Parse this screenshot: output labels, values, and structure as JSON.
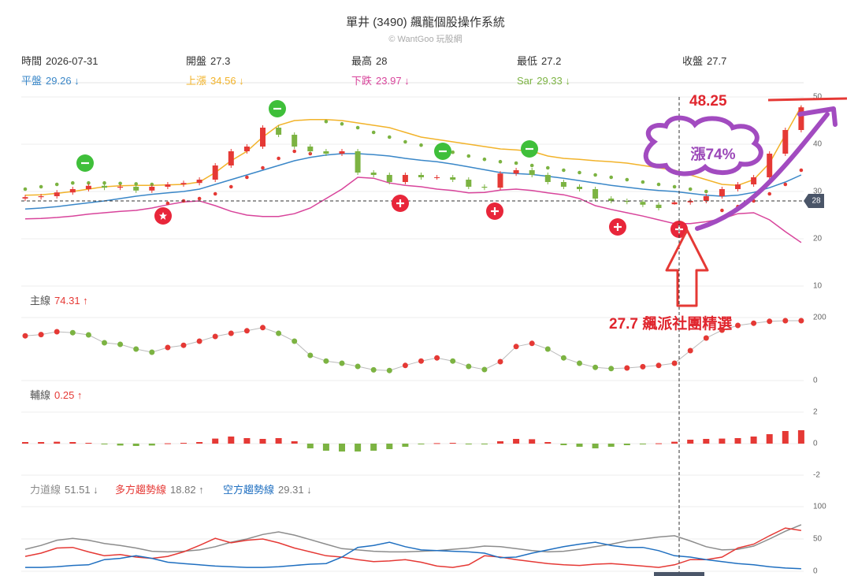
{
  "header": {
    "title": "單井 (3490) 飆龍個股操作系統",
    "subtitle": "© WantGoo 玩股網",
    "info": [
      {
        "label": "時間",
        "value": "2026-07-31"
      },
      {
        "label": "開盤",
        "value": 27.3
      },
      {
        "label": "最高",
        "value": 28
      },
      {
        "label": "最低",
        "value": 27.2
      },
      {
        "label": "收盤",
        "value": 27.7
      }
    ]
  },
  "chart_data": [
    {
      "type": "candlestick",
      "up_color": "#e53935",
      "down_color": "#7cb342",
      "grid": true,
      "ylim": [
        10,
        53
      ],
      "yticks": [
        10,
        20,
        30,
        40,
        50
      ],
      "price_marker": 28,
      "open": [
        28.5,
        28.8,
        29.0,
        29.8,
        30.5,
        31.2,
        30.8,
        31.0,
        30.2,
        31.0,
        31.5,
        31.8,
        32.5,
        35.5,
        38.5,
        39.5,
        43.5,
        42.0,
        39.5,
        38.5,
        38.0,
        38.5,
        34.0,
        33.5,
        32.0,
        33.5,
        33.0,
        33.0,
        32.5,
        31.0,
        30.8,
        33.8,
        34.5,
        33.5,
        32.0,
        31.0,
        30.5,
        28.5,
        28.0,
        27.8,
        27.2,
        27.3,
        27.7,
        28.0,
        29.0,
        30.5,
        31.5,
        33.0,
        38.0,
        43.0
      ],
      "high": [
        29.3,
        29.5,
        30.3,
        31.0,
        31.7,
        31.7,
        31.5,
        31.5,
        31.5,
        32.0,
        32.3,
        33.0,
        36.0,
        39.0,
        40.0,
        44.0,
        44.0,
        42.5,
        40.0,
        39.0,
        39.0,
        39.0,
        34.5,
        34.0,
        34.0,
        34.0,
        33.5,
        33.5,
        33.0,
        31.5,
        34.3,
        35.0,
        35.0,
        34.0,
        32.5,
        31.5,
        31.0,
        29.0,
        28.5,
        28.3,
        27.7,
        28,
        28.5,
        29.5,
        31.0,
        32.0,
        33.5,
        38.5,
        43.5,
        48.25
      ],
      "low": [
        28.0,
        28.3,
        28.5,
        29.3,
        30.0,
        30.3,
        30.3,
        29.7,
        29.7,
        30.5,
        31.0,
        31.3,
        32.0,
        35.0,
        38.0,
        39.0,
        41.5,
        39.0,
        38.0,
        37.5,
        37.5,
        33.5,
        33.0,
        31.5,
        31.5,
        32.5,
        32.5,
        32.0,
        30.5,
        30.3,
        30.3,
        33.3,
        33.0,
        31.5,
        30.5,
        30.0,
        28.0,
        27.5,
        27.3,
        26.7,
        26.0,
        27.2,
        27.2,
        27.5,
        28.5,
        30.0,
        31.0,
        32.5,
        37.5,
        42.5
      ],
      "close": [
        28.8,
        29.0,
        29.8,
        30.5,
        31.2,
        30.8,
        31.0,
        30.2,
        31.0,
        31.5,
        31.8,
        32.5,
        35.5,
        38.5,
        39.5,
        43.5,
        42.0,
        39.5,
        38.5,
        38.0,
        38.5,
        34.0,
        33.5,
        32.0,
        33.5,
        33.0,
        33.0,
        32.5,
        31.0,
        30.8,
        33.8,
        34.5,
        33.5,
        32.0,
        31.0,
        30.5,
        28.5,
        28.0,
        27.8,
        27.2,
        26.5,
        27.7,
        28.0,
        29.0,
        30.5,
        31.5,
        33.0,
        38.0,
        43.0,
        47.8
      ],
      "series": [
        {
          "name": "平盤",
          "readout": "29.26 ↓",
          "color": "#3a87c8",
          "values": [
            26.3,
            26.5,
            26.8,
            27.2,
            27.6,
            28.0,
            28.5,
            29.0,
            29.4,
            29.7,
            30.0,
            30.5,
            31.5,
            32.5,
            33.5,
            34.5,
            35.5,
            36.5,
            37.2,
            37.7,
            38.0,
            38.0,
            37.8,
            37.5,
            37.0,
            36.6,
            36.3,
            35.8,
            35.2,
            34.6,
            34.0,
            33.8,
            33.6,
            33.2,
            32.8,
            32.3,
            31.8,
            31.3,
            30.9,
            30.5,
            30.2,
            30.0,
            29.6,
            29.2,
            29.0,
            29.2,
            29.8,
            30.8,
            32.0,
            33.5
          ]
        },
        {
          "name": "上漲",
          "readout": "34.56 ↓",
          "color": "#f2b32a",
          "values": [
            29.2,
            29.3,
            29.6,
            30.0,
            30.5,
            31.0,
            31.2,
            31.3,
            31.3,
            31.4,
            31.5,
            32.0,
            34.0,
            36.5,
            38.5,
            41.5,
            44.0,
            45.0,
            45.2,
            45.2,
            45.0,
            44.5,
            44.0,
            43.5,
            42.5,
            41.5,
            41.0,
            40.5,
            40.0,
            39.5,
            39.0,
            38.8,
            38.5,
            37.5,
            37.0,
            36.8,
            36.5,
            36.3,
            36.0,
            35.5,
            35.0,
            34.5,
            33.5,
            32.5,
            31.5,
            31.3,
            32.5,
            36.0,
            42.0,
            48.0
          ]
        },
        {
          "name": "下跌",
          "readout": "23.97 ↓",
          "color": "#d8449b",
          "values": [
            24.2,
            24.3,
            24.5,
            24.8,
            25.2,
            25.5,
            25.8,
            26.0,
            26.5,
            27.2,
            27.8,
            28.0,
            27.0,
            25.8,
            25.0,
            24.7,
            24.7,
            25.3,
            26.5,
            28.5,
            30.5,
            33.0,
            32.8,
            31.8,
            31.3,
            31.0,
            30.5,
            30.2,
            29.7,
            29.8,
            30.3,
            30.5,
            30.2,
            29.7,
            29.3,
            28.5,
            27.0,
            26.2,
            25.5,
            24.8,
            24.0,
            23.2,
            23.2,
            23.6,
            24.2,
            25.3,
            25.5,
            24.0,
            21.5,
            19.2
          ]
        },
        {
          "name": "Sar",
          "readout": "29.33 ↓",
          "color": "#7cb342",
          "style": "dots",
          "values": [
            30.5,
            31.0,
            31.5,
            31.8,
            31.8,
            31.8,
            31.7,
            31.6,
            31.5,
            27.5,
            28.0,
            28.5,
            29.5,
            31.0,
            33.0,
            35.0,
            37.0,
            38.5,
            38.0,
            44.8,
            44.3,
            43.5,
            42.5,
            41.5,
            40.5,
            39.8,
            39.0,
            38.3,
            37.5,
            36.8,
            36.3,
            36.0,
            35.5,
            35.0,
            34.5,
            34.0,
            33.5,
            33.0,
            32.5,
            32.0,
            31.5,
            31.0,
            30.5,
            30.0,
            26.0,
            26.8,
            28.0,
            29.5,
            31.5,
            34.5
          ]
        }
      ],
      "annotations": [
        "48.25",
        "漲74%",
        "27.7 飆派社團精選"
      ]
    },
    {
      "type": "dot_line",
      "up_color": "#e53935",
      "down_color": "#7cb342",
      "grid": true,
      "ylim": [
        0,
        200
      ],
      "yticks": [
        0,
        200
      ],
      "series": [
        {
          "name": "主線",
          "readout": "74.31 ↑",
          "color": "#e53935",
          "values": [
            142,
            146,
            155,
            152,
            145,
            120,
            115,
            100,
            90,
            105,
            112,
            125,
            140,
            150,
            158,
            168,
            150,
            125,
            80,
            62,
            55,
            45,
            34,
            32,
            48,
            62,
            72,
            62,
            45,
            35,
            60,
            108,
            118,
            100,
            72,
            55,
            42,
            38,
            40,
            44,
            48,
            55,
            95,
            135,
            160,
            175,
            182,
            188,
            190,
            190
          ]
        }
      ]
    },
    {
      "type": "bar",
      "up_color": "#e53935",
      "down_color": "#7cb342",
      "grid": true,
      "ylim": [
        -2,
        2
      ],
      "yticks": [
        -2,
        0,
        2
      ],
      "series": [
        {
          "name": "輔線",
          "readout": "0.25 ↑",
          "color": "#e53935",
          "values": [
            0.1,
            0.1,
            0.12,
            0.1,
            0.05,
            -0.05,
            -0.12,
            -0.15,
            -0.12,
            0.02,
            0.05,
            0.1,
            0.32,
            0.45,
            0.35,
            0.3,
            0.35,
            0.15,
            -0.3,
            -0.45,
            -0.5,
            -0.5,
            -0.45,
            -0.35,
            -0.2,
            -0.05,
            0.03,
            0.05,
            -0.05,
            -0.03,
            0.15,
            0.3,
            0.28,
            0.1,
            -0.1,
            -0.2,
            -0.3,
            -0.2,
            -0.1,
            -0.05,
            0.02,
            0.12,
            0.25,
            0.3,
            0.32,
            0.35,
            0.45,
            0.6,
            0.8,
            0.85
          ]
        }
      ]
    },
    {
      "type": "line",
      "grid": true,
      "ylim": [
        0,
        100
      ],
      "yticks": [
        0,
        50,
        100
      ],
      "series": [
        {
          "name": "力道線",
          "readout": "51.51 ↓",
          "color": "#8c8c8c",
          "values": [
            34,
            40,
            48,
            51,
            48,
            43,
            40,
            36,
            31,
            30,
            31,
            33,
            38,
            45,
            50,
            57,
            61,
            56,
            49,
            42,
            35,
            33,
            31,
            30,
            30,
            31,
            32,
            34,
            36,
            39,
            38,
            35,
            32,
            30,
            31,
            34,
            38,
            42,
            47,
            50,
            53,
            55,
            47,
            38,
            33,
            34,
            39,
            50,
            62,
            72
          ]
        },
        {
          "name": "多方趨勢線",
          "readout": "18.82 ↑",
          "color": "#e53935",
          "values": [
            23,
            28,
            36,
            37,
            30,
            24,
            26,
            22,
            20,
            23,
            30,
            40,
            51,
            44,
            48,
            50,
            44,
            36,
            30,
            24,
            22,
            18,
            15,
            16,
            18,
            14,
            8,
            6,
            10,
            24,
            22,
            18,
            15,
            12,
            10,
            9,
            11,
            12,
            10,
            8,
            6,
            10,
            18,
            18,
            22,
            36,
            42,
            55,
            67,
            63
          ]
        },
        {
          "name": "空方趨勢線",
          "readout": "29.31 ↓",
          "color": "#1f6fc0",
          "values": [
            6,
            6,
            7,
            9,
            10,
            18,
            20,
            24,
            20,
            14,
            12,
            10,
            8,
            7,
            6,
            6,
            7,
            9,
            11,
            12,
            22,
            37,
            40,
            45,
            38,
            33,
            32,
            31,
            30,
            28,
            21,
            22,
            28,
            33,
            38,
            42,
            45,
            40,
            37,
            37,
            32,
            24,
            22,
            18,
            15,
            12,
            10,
            7,
            5,
            4
          ]
        }
      ]
    }
  ]
}
